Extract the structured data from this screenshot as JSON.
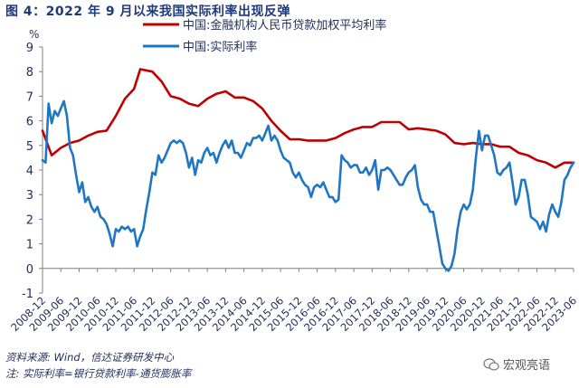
{
  "figure": {
    "title": "图 4：2022 年 9 月以来我国实际利率出现反弹",
    "source_line": "资料来源: Wind，信达证券研发中心",
    "note_line": "注: 实际利率=银行贷款利率-通货膨胀率",
    "watermark": "宏观亮语"
  },
  "chart_data": {
    "type": "line",
    "title": "",
    "xlabel": "",
    "ylabel": "%",
    "ylim": [
      -1,
      9
    ],
    "yticks": [
      -1,
      0,
      1,
      2,
      3,
      4,
      5,
      6,
      7,
      8,
      9
    ],
    "xlim": [
      "2008-12",
      "2023-06"
    ],
    "xticks": [
      "2008-12",
      "2009-06",
      "2009-12",
      "2010-06",
      "2010-12",
      "2011-06",
      "2011-12",
      "2012-06",
      "2012-12",
      "2013-06",
      "2013-12",
      "2014-06",
      "2014-12",
      "2015-06",
      "2015-12",
      "2016-06",
      "2016-12",
      "2017-06",
      "2017-12",
      "2018-06",
      "2018-12",
      "2019-06",
      "2019-12",
      "2020-06",
      "2020-12",
      "2021-06",
      "2021-12",
      "2022-06",
      "2022-12",
      "2023-06"
    ],
    "grid": false,
    "legend_position": "top",
    "series": [
      {
        "name": "中国:金融机构人民币贷款加权平均利率",
        "color": "#c00000",
        "points": [
          [
            "2008-12",
            5.6
          ],
          [
            "2009-03",
            4.6
          ],
          [
            "2009-06",
            4.9
          ],
          [
            "2009-09",
            5.1
          ],
          [
            "2009-12",
            5.2
          ],
          [
            "2010-03",
            5.4
          ],
          [
            "2010-06",
            5.55
          ],
          [
            "2010-09",
            5.6
          ],
          [
            "2010-12",
            6.2
          ],
          [
            "2011-03",
            6.9
          ],
          [
            "2011-06",
            7.3
          ],
          [
            "2011-08",
            8.1
          ],
          [
            "2011-12",
            8.0
          ],
          [
            "2012-03",
            7.6
          ],
          [
            "2012-06",
            7.0
          ],
          [
            "2012-09",
            6.9
          ],
          [
            "2012-12",
            6.7
          ],
          [
            "2013-03",
            6.6
          ],
          [
            "2013-06",
            6.9
          ],
          [
            "2013-09",
            7.1
          ],
          [
            "2013-12",
            7.2
          ],
          [
            "2014-03",
            6.95
          ],
          [
            "2014-06",
            6.95
          ],
          [
            "2014-09",
            6.8
          ],
          [
            "2014-12",
            6.5
          ],
          [
            "2015-03",
            6.0
          ],
          [
            "2015-06",
            5.6
          ],
          [
            "2015-09",
            5.25
          ],
          [
            "2015-12",
            5.25
          ],
          [
            "2016-03",
            5.2
          ],
          [
            "2016-06",
            5.2
          ],
          [
            "2016-09",
            5.2
          ],
          [
            "2016-12",
            5.3
          ],
          [
            "2017-03",
            5.5
          ],
          [
            "2017-06",
            5.65
          ],
          [
            "2017-09",
            5.75
          ],
          [
            "2017-12",
            5.75
          ],
          [
            "2018-03",
            5.95
          ],
          [
            "2018-06",
            5.95
          ],
          [
            "2018-09",
            5.95
          ],
          [
            "2018-12",
            5.65
          ],
          [
            "2019-03",
            5.7
          ],
          [
            "2019-06",
            5.65
          ],
          [
            "2019-09",
            5.6
          ],
          [
            "2019-12",
            5.45
          ],
          [
            "2020-03",
            5.1
          ],
          [
            "2020-06",
            5.05
          ],
          [
            "2020-09",
            5.1
          ],
          [
            "2020-12",
            5.05
          ],
          [
            "2021-03",
            5.05
          ],
          [
            "2021-06",
            4.95
          ],
          [
            "2021-09",
            4.95
          ],
          [
            "2021-12",
            4.7
          ],
          [
            "2022-03",
            4.6
          ],
          [
            "2022-06",
            4.4
          ],
          [
            "2022-09",
            4.3
          ],
          [
            "2022-12",
            4.1
          ],
          [
            "2023-03",
            4.3
          ],
          [
            "2023-06",
            4.3
          ]
        ]
      },
      {
        "name": "中国:实际利率",
        "color": "#1f77c4",
        "points": [
          [
            "2008-12",
            4.4
          ],
          [
            "2009-01",
            4.3
          ],
          [
            "2009-02",
            6.7
          ],
          [
            "2009-03",
            5.9
          ],
          [
            "2009-04",
            6.4
          ],
          [
            "2009-05",
            6.2
          ],
          [
            "2009-06",
            6.5
          ],
          [
            "2009-07",
            6.8
          ],
          [
            "2009-08",
            6.2
          ],
          [
            "2009-09",
            4.9
          ],
          [
            "2009-10",
            4.6
          ],
          [
            "2009-11",
            3.8
          ],
          [
            "2009-12",
            3.1
          ],
          [
            "2010-01",
            3.5
          ],
          [
            "2010-02",
            2.7
          ],
          [
            "2010-03",
            2.9
          ],
          [
            "2010-04",
            2.5
          ],
          [
            "2010-05",
            2.3
          ],
          [
            "2010-06",
            2.5
          ],
          [
            "2010-07",
            2.1
          ],
          [
            "2010-08",
            2.0
          ],
          [
            "2010-09",
            1.8
          ],
          [
            "2010-10",
            1.4
          ],
          [
            "2010-11",
            0.9
          ],
          [
            "2010-12",
            1.6
          ],
          [
            "2011-01",
            1.5
          ],
          [
            "2011-02",
            1.7
          ],
          [
            "2011-03",
            1.6
          ],
          [
            "2011-04",
            1.7
          ],
          [
            "2011-05",
            1.5
          ],
          [
            "2011-06",
            1.6
          ],
          [
            "2011-07",
            0.9
          ],
          [
            "2011-08",
            1.3
          ],
          [
            "2011-09",
            1.6
          ],
          [
            "2011-10",
            2.4
          ],
          [
            "2011-11",
            3.1
          ],
          [
            "2011-12",
            3.9
          ],
          [
            "2012-01",
            3.8
          ],
          [
            "2012-02",
            4.6
          ],
          [
            "2012-03",
            4.3
          ],
          [
            "2012-04",
            4.5
          ],
          [
            "2012-05",
            4.8
          ],
          [
            "2012-06",
            5.1
          ],
          [
            "2012-07",
            5.2
          ],
          [
            "2012-08",
            5.1
          ],
          [
            "2012-09",
            5.2
          ],
          [
            "2012-10",
            5.1
          ],
          [
            "2012-11",
            4.7
          ],
          [
            "2012-12",
            4.1
          ],
          [
            "2013-01",
            4.5
          ],
          [
            "2013-02",
            3.8
          ],
          [
            "2013-03",
            4.4
          ],
          [
            "2013-04",
            4.3
          ],
          [
            "2013-05",
            4.7
          ],
          [
            "2013-06",
            4.9
          ],
          [
            "2013-07",
            4.6
          ],
          [
            "2013-08",
            4.7
          ],
          [
            "2013-09",
            4.3
          ],
          [
            "2013-10",
            4.7
          ],
          [
            "2013-11",
            5.0
          ],
          [
            "2013-12",
            5.2
          ],
          [
            "2014-01",
            4.9
          ],
          [
            "2014-02",
            5.2
          ],
          [
            "2014-03",
            4.7
          ],
          [
            "2014-04",
            4.7
          ],
          [
            "2014-05",
            4.5
          ],
          [
            "2014-06",
            4.8
          ],
          [
            "2014-07",
            5.1
          ],
          [
            "2014-08",
            5.0
          ],
          [
            "2014-09",
            5.3
          ],
          [
            "2014-10",
            5.3
          ],
          [
            "2014-11",
            5.4
          ],
          [
            "2014-12",
            5.2
          ],
          [
            "2015-01",
            5.5
          ],
          [
            "2015-02",
            5.8
          ],
          [
            "2015-03",
            5.2
          ],
          [
            "2015-04",
            5.4
          ],
          [
            "2015-05",
            5.2
          ],
          [
            "2015-06",
            4.8
          ],
          [
            "2015-07",
            4.5
          ],
          [
            "2015-08",
            4.4
          ],
          [
            "2015-09",
            4.3
          ],
          [
            "2015-10",
            3.9
          ],
          [
            "2015-11",
            3.7
          ],
          [
            "2015-12",
            3.9
          ],
          [
            "2016-01",
            3.6
          ],
          [
            "2016-02",
            3.4
          ],
          [
            "2016-03",
            3.3
          ],
          [
            "2016-04",
            2.9
          ],
          [
            "2016-05",
            3.3
          ],
          [
            "2016-06",
            3.4
          ],
          [
            "2016-07",
            3.3
          ],
          [
            "2016-08",
            3.5
          ],
          [
            "2016-09",
            3.2
          ],
          [
            "2016-10",
            2.9
          ],
          [
            "2016-11",
            2.9
          ],
          [
            "2016-12",
            2.7
          ],
          [
            "2017-01",
            2.8
          ],
          [
            "2017-02",
            4.6
          ],
          [
            "2017-03",
            4.4
          ],
          [
            "2017-04",
            4.3
          ],
          [
            "2017-05",
            4.1
          ],
          [
            "2017-06",
            4.2
          ],
          [
            "2017-07",
            4.2
          ],
          [
            "2017-08",
            3.9
          ],
          [
            "2017-09",
            3.9
          ],
          [
            "2017-10",
            4.1
          ],
          [
            "2017-11",
            3.8
          ],
          [
            "2017-12",
            4.0
          ],
          [
            "2018-01",
            4.4
          ],
          [
            "2018-02",
            3.2
          ],
          [
            "2018-03",
            4.0
          ],
          [
            "2018-04",
            4.0
          ],
          [
            "2018-05",
            4.1
          ],
          [
            "2018-06",
            4.0
          ],
          [
            "2018-07",
            3.8
          ],
          [
            "2018-08",
            3.6
          ],
          [
            "2018-09",
            3.4
          ],
          [
            "2018-10",
            3.4
          ],
          [
            "2018-11",
            3.7
          ],
          [
            "2018-12",
            3.9
          ],
          [
            "2019-01",
            4.0
          ],
          [
            "2019-02",
            4.2
          ],
          [
            "2019-03",
            3.3
          ],
          [
            "2019-04",
            2.8
          ],
          [
            "2019-05",
            2.6
          ],
          [
            "2019-06",
            2.6
          ],
          [
            "2019-07",
            2.3
          ],
          [
            "2019-08",
            2.3
          ],
          [
            "2019-09",
            1.6
          ],
          [
            "2019-10",
            0.9
          ],
          [
            "2019-11",
            0.2
          ],
          [
            "2019-12",
            0.0
          ],
          [
            "2020-01",
            -0.1
          ],
          [
            "2020-02",
            0.1
          ],
          [
            "2020-03",
            0.6
          ],
          [
            "2020-04",
            1.6
          ],
          [
            "2020-05",
            2.3
          ],
          [
            "2020-06",
            2.6
          ],
          [
            "2020-07",
            2.4
          ],
          [
            "2020-08",
            2.6
          ],
          [
            "2020-09",
            3.2
          ],
          [
            "2020-10",
            4.5
          ],
          [
            "2020-11",
            5.6
          ],
          [
            "2020-12",
            4.8
          ],
          [
            "2021-01",
            5.4
          ],
          [
            "2021-02",
            5.4
          ],
          [
            "2021-03",
            5.0
          ],
          [
            "2021-04",
            4.6
          ],
          [
            "2021-05",
            3.9
          ],
          [
            "2021-06",
            3.8
          ],
          [
            "2021-07",
            4.0
          ],
          [
            "2021-08",
            4.1
          ],
          [
            "2021-09",
            4.3
          ],
          [
            "2021-10",
            3.5
          ],
          [
            "2021-11",
            2.6
          ],
          [
            "2021-12",
            2.9
          ],
          [
            "2022-01",
            3.6
          ],
          [
            "2022-02",
            3.6
          ],
          [
            "2022-03",
            3.0
          ],
          [
            "2022-04",
            2.1
          ],
          [
            "2022-05",
            2.0
          ],
          [
            "2022-06",
            1.9
          ],
          [
            "2022-07",
            1.6
          ],
          [
            "2022-08",
            1.9
          ],
          [
            "2022-09",
            1.5
          ],
          [
            "2022-10",
            2.2
          ],
          [
            "2022-11",
            2.6
          ],
          [
            "2022-12",
            2.3
          ],
          [
            "2023-01",
            2.1
          ],
          [
            "2023-02",
            2.7
          ],
          [
            "2023-03",
            3.6
          ],
          [
            "2023-04",
            3.8
          ],
          [
            "2023-05",
            4.1
          ],
          [
            "2023-06",
            4.3
          ]
        ]
      }
    ]
  }
}
